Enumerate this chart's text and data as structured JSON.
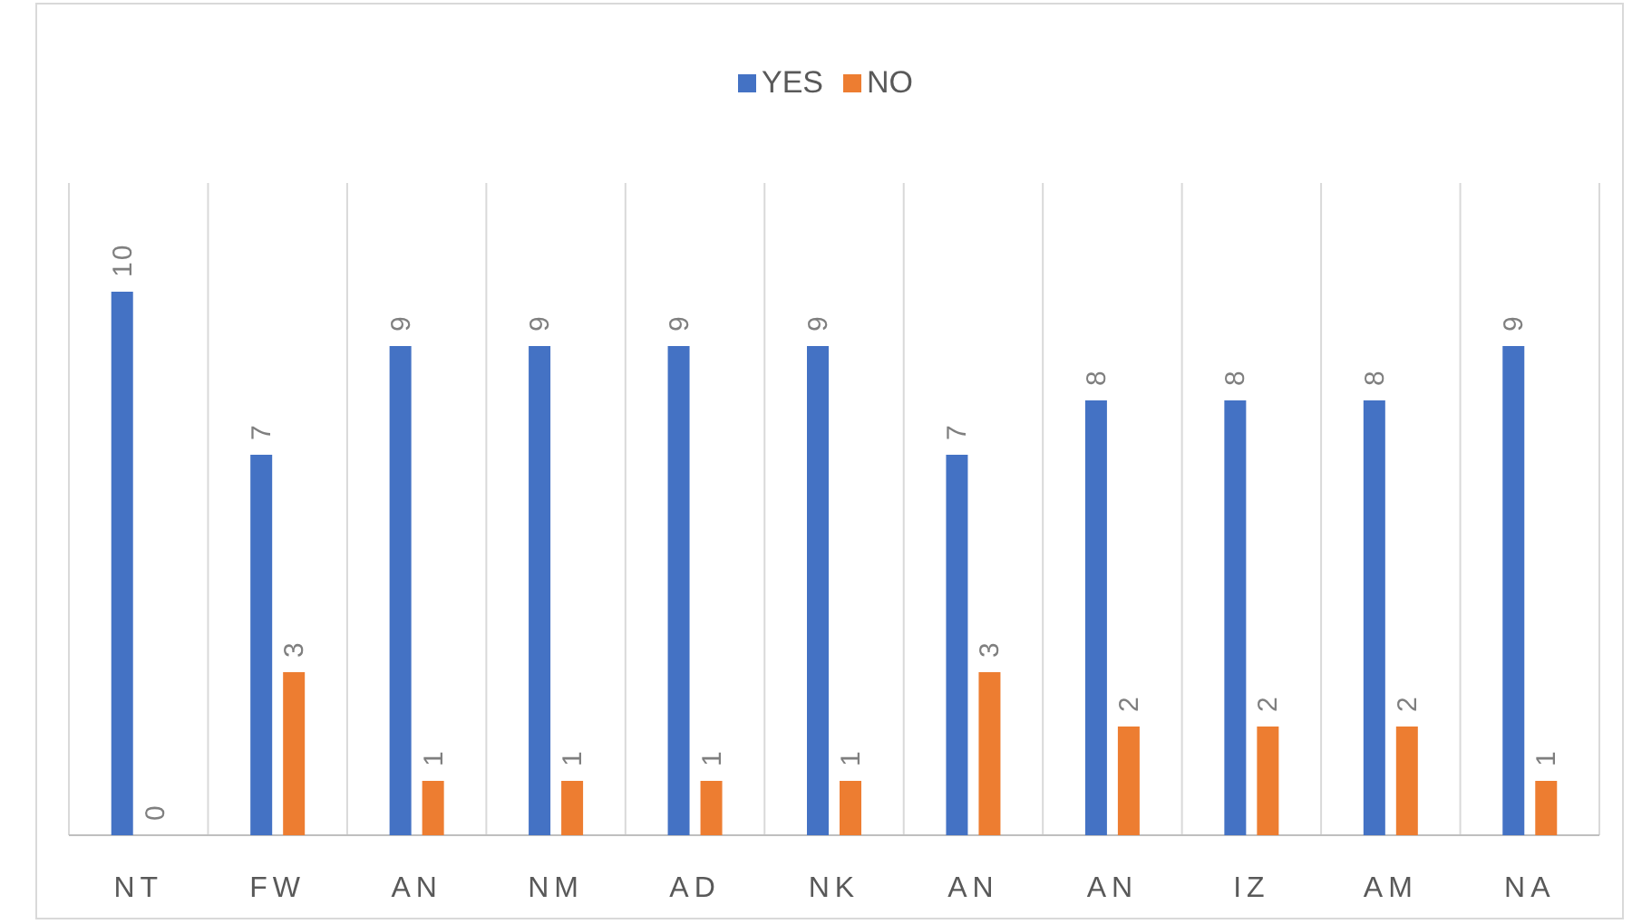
{
  "chart_data": {
    "type": "bar",
    "categories": [
      "NT",
      "FW",
      "AN",
      "NM",
      "AD",
      "NK",
      "AN",
      "AN",
      "IZ",
      "AM",
      "NA"
    ],
    "series": [
      {
        "name": "YES",
        "color": "#4472c4",
        "values": [
          10,
          7,
          9,
          9,
          9,
          9,
          7,
          8,
          8,
          8,
          9
        ]
      },
      {
        "name": "NO",
        "color": "#ed7d31",
        "values": [
          0,
          3,
          1,
          1,
          1,
          1,
          3,
          2,
          2,
          2,
          1
        ]
      }
    ],
    "data_labels": true,
    "grid": "x",
    "legend": "top"
  }
}
